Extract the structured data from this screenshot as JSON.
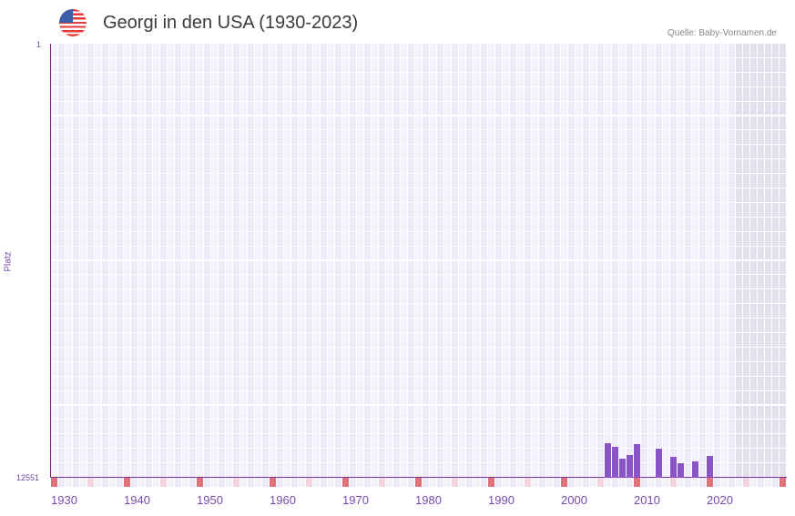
{
  "header": {
    "title": "Georgi in den USA (1930-2023)",
    "source": "Quelle: Baby-Vornamen.de",
    "flag_icon": "usa-flag-icon"
  },
  "axis": {
    "y_top": "1",
    "y_bottom": "12551",
    "y_label": "Platz",
    "x_ticks": [
      "1930",
      "1940",
      "1950",
      "1960",
      "1970",
      "1980",
      "1990",
      "2000",
      "2010",
      "2020"
    ]
  },
  "colors": {
    "bar": "#8b55c8",
    "grid_a": "#efeafa",
    "grid_b": "#f4f1fc",
    "future_shade": "#e4e0ee",
    "decade_mark": "#e0707a",
    "half_decade_mark": "#f3d6e0"
  },
  "chart_data": {
    "type": "bar",
    "title": "Georgi in den USA (1930-2023)",
    "xlabel": "",
    "ylabel": "Platz",
    "ylim": [
      12551,
      1
    ],
    "y_inverted": true,
    "grid": true,
    "legend": null,
    "categories": [
      2004,
      2005,
      2006,
      2007,
      2008,
      2011,
      2013,
      2014,
      2016,
      2018
    ],
    "values": [
      11551,
      11657,
      12000,
      11893,
      11578,
      11709,
      11946,
      12130,
      12077,
      11920
    ],
    "x_tick_labels": [
      "1930",
      "1940",
      "1950",
      "1960",
      "1970",
      "1980",
      "1990",
      "2000",
      "2010",
      "2020"
    ],
    "y_tick_labels": [
      "1",
      "12551"
    ],
    "source": "Quelle: Baby-Vornamen.de"
  }
}
